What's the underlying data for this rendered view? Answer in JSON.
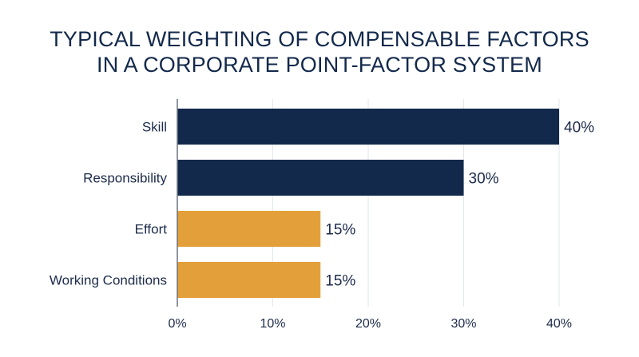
{
  "chart_data": {
    "type": "bar",
    "orientation": "horizontal",
    "title_line1": "TYPICAL WEIGHTING OF COMPENSABLE FACTORS",
    "title_line2": "IN A CORPORATE POINT-FACTOR SYSTEM",
    "categories": [
      "Skill",
      "Responsibility",
      "Effort",
      "Working Conditions"
    ],
    "values": [
      40,
      30,
      15,
      15
    ],
    "value_labels": [
      "40%",
      "30%",
      "15%",
      "15%"
    ],
    "bar_colors": [
      "#13294b",
      "#13294b",
      "#e3a03a",
      "#e3a03a"
    ],
    "xlim": [
      0,
      40
    ],
    "xticks": [
      0,
      10,
      20,
      30,
      40
    ],
    "xtick_labels": [
      "0%",
      "10%",
      "20%",
      "30%",
      "40%"
    ],
    "grid": "vertical",
    "xlabel": "",
    "ylabel": ""
  }
}
